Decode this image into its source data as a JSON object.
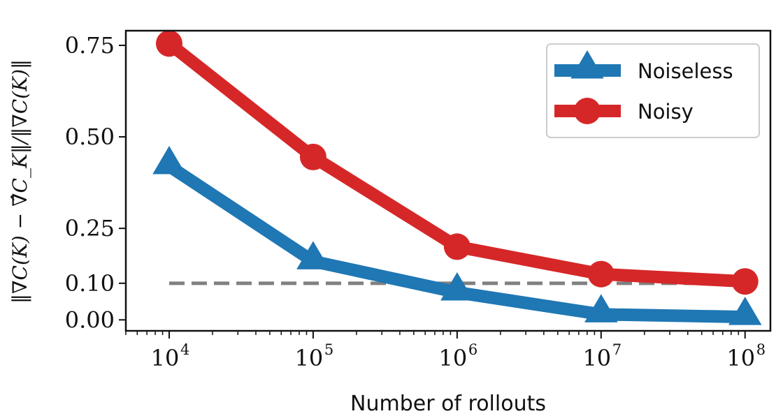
{
  "chart_data": {
    "type": "line",
    "title": "",
    "xlabel": "Number of rollouts",
    "ylabel": "‖∇C(K) − ∇̂C_K‖/‖∇C(K)‖",
    "x_scale": "log",
    "x": [
      10000,
      100000,
      1000000,
      10000000,
      100000000
    ],
    "x_tick_labels": [
      {
        "base": "10",
        "exp": "4"
      },
      {
        "base": "10",
        "exp": "5"
      },
      {
        "base": "10",
        "exp": "6"
      },
      {
        "base": "10",
        "exp": "7"
      },
      {
        "base": "10",
        "exp": "8"
      }
    ],
    "xlim": [
      5000,
      150000000
    ],
    "ylim": [
      -0.03,
      0.79
    ],
    "y_ticks": [
      0.0,
      0.1,
      0.25,
      0.5,
      0.75
    ],
    "y_tick_labels": [
      "0.00",
      "0.10",
      "0.25",
      "0.50",
      "0.75"
    ],
    "series": [
      {
        "name": "Noiseless",
        "values": [
          0.42,
          0.16,
          0.075,
          0.015,
          0.008
        ],
        "color": "#1f77b4",
        "marker": "triangle"
      },
      {
        "name": "Noisy",
        "values": [
          0.755,
          0.445,
          0.2,
          0.125,
          0.105
        ],
        "color": "#d62728",
        "marker": "circle"
      }
    ],
    "reference_line": {
      "y": 0.1,
      "style": "dashed",
      "color": "#808080"
    },
    "grid": false,
    "legend_position": "top-right"
  }
}
